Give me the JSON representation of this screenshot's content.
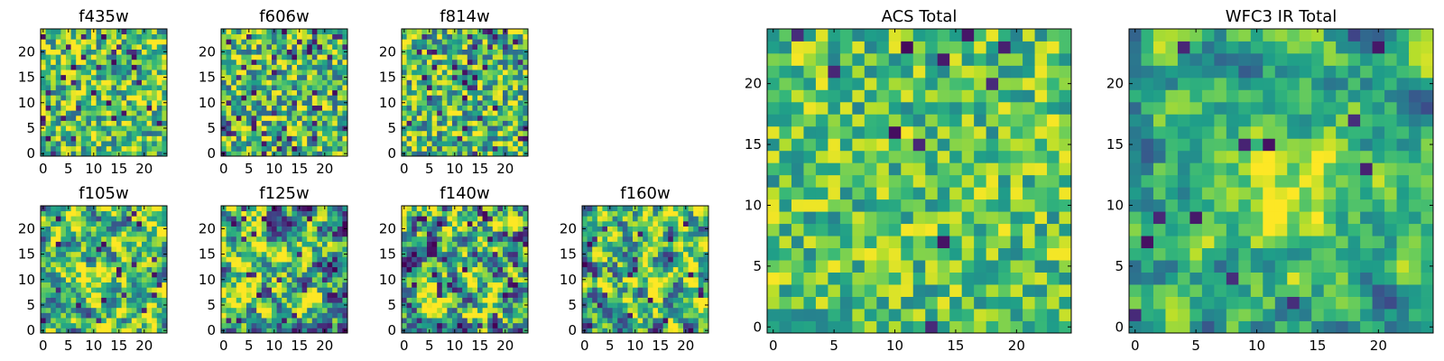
{
  "figure": {
    "colormap": "viridis",
    "colormap_stops": [
      "#440154",
      "#482878",
      "#3e4989",
      "#31688e",
      "#26828e",
      "#1f9e89",
      "#35b779",
      "#6ece58",
      "#b5de2b",
      "#fde725"
    ]
  },
  "chart_data": [
    {
      "type": "heatmap",
      "title": "f435w",
      "grid_size": [
        25,
        25
      ],
      "xlim": [
        -0.5,
        24.5
      ],
      "ylim": [
        -0.5,
        24.5
      ],
      "xticks": [
        0,
        5,
        10,
        15,
        20
      ],
      "yticks": [
        0,
        5,
        10,
        15,
        20
      ],
      "origin": "lower",
      "pattern": "noise",
      "seed": 11,
      "base": 0.72,
      "contrast": 0.75,
      "smooth": 0,
      "dark_fraction": 0.06
    },
    {
      "type": "heatmap",
      "title": "f606w",
      "grid_size": [
        25,
        25
      ],
      "xlim": [
        -0.5,
        24.5
      ],
      "ylim": [
        -0.5,
        24.5
      ],
      "xticks": [
        0,
        5,
        10,
        15,
        20
      ],
      "yticks": [
        0,
        5,
        10,
        15,
        20
      ],
      "origin": "lower",
      "pattern": "noise",
      "seed": 23,
      "base": 0.68,
      "contrast": 0.8,
      "smooth": 0,
      "dark_fraction": 0.07
    },
    {
      "type": "heatmap",
      "title": "f814w",
      "grid_size": [
        25,
        25
      ],
      "xlim": [
        -0.5,
        24.5
      ],
      "ylim": [
        -0.5,
        24.5
      ],
      "xticks": [
        0,
        5,
        10,
        15,
        20
      ],
      "yticks": [
        0,
        5,
        10,
        15,
        20
      ],
      "origin": "lower",
      "pattern": "noise",
      "seed": 37,
      "base": 0.68,
      "contrast": 0.8,
      "smooth": 0,
      "dark_fraction": 0.07
    },
    {
      "type": "heatmap",
      "title": "f105w",
      "grid_size": [
        25,
        25
      ],
      "xlim": [
        -0.5,
        24.5
      ],
      "ylim": [
        -0.5,
        24.5
      ],
      "xticks": [
        0,
        5,
        10,
        15,
        20
      ],
      "yticks": [
        0,
        5,
        10,
        15,
        20
      ],
      "origin": "lower",
      "pattern": "smooth",
      "seed": 41,
      "base": 0.66,
      "contrast": 0.9,
      "smooth": 1,
      "dark_fraction": 0.03,
      "blob": [
        12,
        10,
        0.22
      ]
    },
    {
      "type": "heatmap",
      "title": "f125w",
      "grid_size": [
        25,
        25
      ],
      "xlim": [
        -0.5,
        24.5
      ],
      "ylim": [
        -0.5,
        24.5
      ],
      "xticks": [
        0,
        5,
        10,
        15,
        20
      ],
      "yticks": [
        0,
        5,
        10,
        15,
        20
      ],
      "origin": "lower",
      "pattern": "smooth",
      "seed": 53,
      "base": 0.62,
      "contrast": 1.0,
      "smooth": 1,
      "dark_fraction": 0.05
    },
    {
      "type": "heatmap",
      "title": "f140w",
      "grid_size": [
        25,
        25
      ],
      "xlim": [
        -0.5,
        24.5
      ],
      "ylim": [
        -0.5,
        24.5
      ],
      "xticks": [
        0,
        5,
        10,
        15,
        20
      ],
      "yticks": [
        0,
        5,
        10,
        15,
        20
      ],
      "origin": "lower",
      "pattern": "smooth",
      "seed": 67,
      "base": 0.62,
      "contrast": 1.0,
      "smooth": 1,
      "dark_fraction": 0.05
    },
    {
      "type": "heatmap",
      "title": "f160w",
      "grid_size": [
        25,
        25
      ],
      "xlim": [
        -0.5,
        24.5
      ],
      "ylim": [
        -0.5,
        24.5
      ],
      "xticks": [
        0,
        5,
        10,
        15,
        20
      ],
      "yticks": [
        0,
        5,
        10,
        15,
        20
      ],
      "origin": "lower",
      "pattern": "smooth",
      "seed": 79,
      "base": 0.64,
      "contrast": 0.95,
      "smooth": 1,
      "dark_fraction": 0.04,
      "blob": [
        12,
        10,
        0.18
      ]
    },
    {
      "type": "heatmap",
      "title": "ACS Total",
      "grid_size": [
        25,
        25
      ],
      "xlim": [
        -0.5,
        24.5
      ],
      "ylim": [
        -0.5,
        24.5
      ],
      "xticks": [
        0,
        5,
        10,
        15,
        20
      ],
      "yticks": [
        0,
        5,
        10,
        15,
        20
      ],
      "origin": "lower",
      "pattern": "noise",
      "seed": 97,
      "base": 0.72,
      "contrast": 0.55,
      "smooth": 0,
      "dark_fraction": 0.025
    },
    {
      "type": "heatmap",
      "title": "WFC3 IR Total",
      "grid_size": [
        25,
        25
      ],
      "xlim": [
        -0.5,
        24.5
      ],
      "ylim": [
        -0.5,
        24.5
      ],
      "xticks": [
        0,
        5,
        10,
        15,
        20
      ],
      "yticks": [
        0,
        5,
        10,
        15,
        20
      ],
      "origin": "lower",
      "pattern": "smooth",
      "seed": 113,
      "base": 0.6,
      "contrast": 0.55,
      "smooth": 1,
      "dark_fraction": 0.025,
      "blob": [
        12,
        11,
        0.3
      ]
    }
  ]
}
